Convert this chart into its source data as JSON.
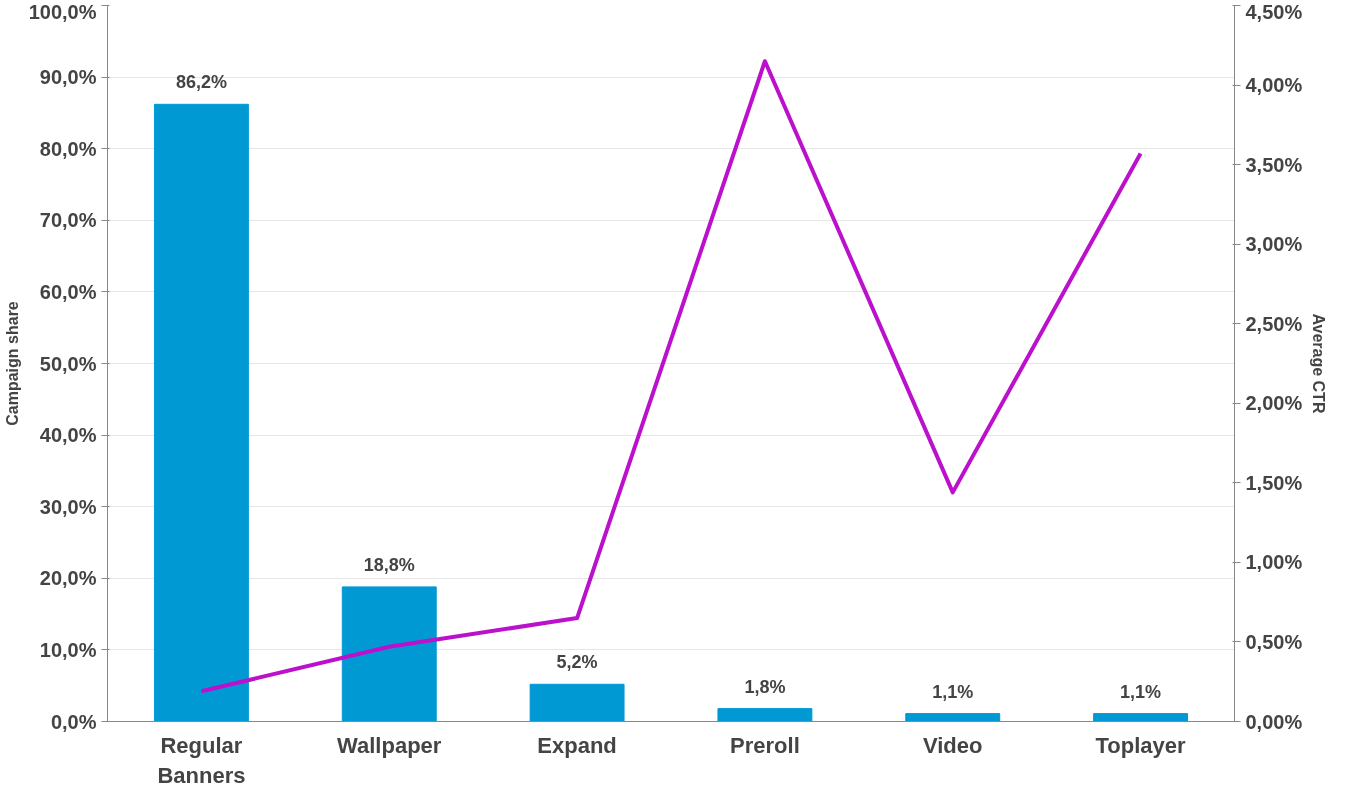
{
  "chart_data": {
    "type": "bar",
    "categories": [
      "Regular Banners",
      "Wallpaper",
      "Expand",
      "Preroll",
      "Video",
      "Toplayer"
    ],
    "series": [
      {
        "color": "#0099d4",
        "values": [
          86.2,
          18.8,
          5.2,
          1.8,
          1.1,
          1.1
        ],
        "value_labels": [
          "86,2%",
          "18,8%",
          "5,2%",
          "1,8%",
          "1,1%",
          "1,1%"
        ]
      },
      {
        "type": "line",
        "axis": "y2",
        "color": "#bb10cc",
        "values": [
          0.19,
          0.47,
          0.65,
          4.15,
          1.44,
          3.57
        ]
      }
    ],
    "ylabel": "Campaign share",
    "y2label": "Average CTR",
    "ylim": [
      0,
      100
    ],
    "yticks": [
      {
        "value": 0,
        "label": "0,0%"
      },
      {
        "value": 10,
        "label": "10,0%"
      },
      {
        "value": 20,
        "label": "20,0%"
      },
      {
        "value": 30,
        "label": "30,0%"
      },
      {
        "value": 40,
        "label": "40,0%"
      },
      {
        "value": 50,
        "label": "50,0%"
      },
      {
        "value": 60,
        "label": "60,0%"
      },
      {
        "value": 70,
        "label": "70,0%"
      },
      {
        "value": 80,
        "label": "80,0%"
      },
      {
        "value": 90,
        "label": "90,0%"
      },
      {
        "value": 100,
        "label": "100,0%"
      }
    ],
    "y2lim": [
      0,
      4.5
    ],
    "y2ticks": [
      {
        "value": 0,
        "label": "0,00%"
      },
      {
        "value": 0.5,
        "label": "0,50%"
      },
      {
        "value": 1,
        "label": "1,00%"
      },
      {
        "value": 1.5,
        "label": "1,50%"
      },
      {
        "value": 2,
        "label": "2,00%"
      },
      {
        "value": 2.5,
        "label": "2,50%"
      },
      {
        "value": 3,
        "label": "3,00%"
      },
      {
        "value": 3.5,
        "label": "3,50%"
      },
      {
        "value": 4,
        "label": "4,00%"
      },
      {
        "value": 4.5,
        "label": "4,50%"
      }
    ],
    "grid": "y",
    "marker": "none",
    "line_style": "solid"
  }
}
